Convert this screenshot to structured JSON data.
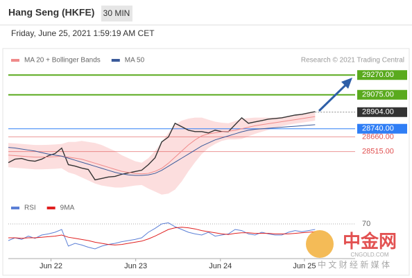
{
  "header": {
    "title": "Hang Seng (HKFE)",
    "timeframe": "30 MIN",
    "datetime": "Friday, June 25, 2021 1:59:19 AM CET"
  },
  "watermark": {
    "logo": "中金网",
    "site": "CNGOLD.COM",
    "tagline": "中 文 财 经 新 媒 体"
  },
  "chart_data": [
    {
      "type": "line",
      "credit": "Research © 2021 Trading Central",
      "x": [
        0,
        1,
        2,
        3,
        4,
        5,
        6,
        7,
        8,
        9,
        10,
        11,
        12,
        13,
        14,
        15,
        16,
        17,
        18,
        19,
        20,
        21,
        22,
        23,
        24,
        25,
        26,
        27,
        28,
        29,
        30,
        31,
        32,
        33,
        34,
        35,
        36,
        37,
        38,
        39,
        40,
        41,
        42,
        43,
        44,
        45,
        46
      ],
      "xlim": [
        0,
        52
      ],
      "xticks": [
        {
          "value": 6.4,
          "label": "Jun 22"
        },
        {
          "value": 19.1,
          "label": "Jun 23"
        },
        {
          "value": 31.8,
          "label": "Jun 24"
        },
        {
          "value": 44.4,
          "label": "Jun 25"
        }
      ],
      "ylim": [
        28150,
        29340
      ],
      "band": {
        "color": "#fbd3d3",
        "upper": [
          28600,
          28595,
          28590,
          28585,
          28580,
          28580,
          28582,
          28585,
          28590,
          28610,
          28610,
          28620,
          28610,
          28600,
          28580,
          28550,
          28520,
          28480,
          28450,
          28420,
          28405,
          28450,
          28520,
          28610,
          28700,
          28780,
          28820,
          28840,
          28850,
          28850,
          28830,
          28810,
          28800,
          28795,
          28815,
          28840,
          28845,
          28850,
          28850,
          28850,
          28850,
          28855,
          28860,
          28870,
          28880,
          28890,
          28900
        ],
        "lower": [
          28360,
          28355,
          28350,
          28345,
          28340,
          28340,
          28342,
          28345,
          28350,
          28310,
          28290,
          28260,
          28230,
          28200,
          28180,
          28170,
          28160,
          28160,
          28170,
          28180,
          28185,
          28150,
          28120,
          28090,
          28100,
          28140,
          28220,
          28320,
          28410,
          28490,
          28550,
          28590,
          28620,
          28635,
          28635,
          28640,
          28665,
          28690,
          28710,
          28730,
          28750,
          28765,
          28780,
          28790,
          28800,
          28810,
          28820
        ]
      },
      "series": [
        {
          "color": "#333333",
          "values": [
            28406,
            28440,
            28447,
            28427,
            28420,
            28440,
            28474,
            28495,
            28549,
            28386,
            28372,
            28352,
            28338,
            28236,
            28250,
            28264,
            28270,
            28291,
            28304,
            28318,
            28331,
            28386,
            28454,
            28610,
            28658,
            28794,
            28760,
            28726,
            28712,
            28712,
            28699,
            28726,
            28712,
            28712,
            28780,
            28848,
            28794,
            28808,
            28821,
            28835,
            28841,
            28848,
            28862,
            28875,
            28882,
            28896,
            28909
          ]
        },
        {
          "name": "MA 20 + Bollinger Bands",
          "color": "#f08a8a",
          "values": [
            28480,
            28475,
            28470,
            28465,
            28460,
            28460,
            28462,
            28465,
            28470,
            28460,
            28450,
            28440,
            28420,
            28400,
            28380,
            28360,
            28340,
            28320,
            28310,
            28300,
            28295,
            28300,
            28320,
            28350,
            28400,
            28460,
            28520,
            28580,
            28630,
            28670,
            28690,
            28700,
            28710,
            28715,
            28725,
            28740,
            28755,
            28770,
            28780,
            28790,
            28800,
            28810,
            28820,
            28830,
            28840,
            28850,
            28860
          ]
        },
        {
          "name": "MA 50",
          "color": "#3a5a9a",
          "values": [
            28556,
            28550,
            28540,
            28530,
            28520,
            28505,
            28490,
            28480,
            28470,
            28450,
            28430,
            28410,
            28390,
            28370,
            28350,
            28330,
            28310,
            28295,
            28285,
            28280,
            28280,
            28285,
            28300,
            28330,
            28370,
            28410,
            28450,
            28490,
            28530,
            28570,
            28600,
            28630,
            28650,
            28670,
            28690,
            28710,
            28725,
            28735,
            28740,
            28745,
            28750,
            28755,
            28760,
            28765,
            28770,
            28775,
            28780
          ]
        }
      ],
      "levels": [
        29270,
        29075,
        28904,
        28740,
        28660,
        28515
      ],
      "level_labels": [
        "29270.00",
        "29075.00",
        "28904.00",
        "28740.00",
        "28660.00",
        "28515.00"
      ],
      "level_colors": [
        "#5aaa1e",
        "#5aaa1e",
        "#333333",
        "#2f7ef5",
        "#e05050",
        "#e05050"
      ]
    },
    {
      "type": "line",
      "xlim": [
        0,
        52
      ],
      "x": [
        0,
        1,
        2,
        3,
        4,
        5,
        6,
        7,
        8,
        9,
        10,
        11,
        12,
        13,
        14,
        15,
        16,
        17,
        18,
        19,
        20,
        21,
        22,
        23,
        24,
        25,
        26,
        27,
        28,
        29,
        30,
        31,
        32,
        33,
        34,
        35,
        36,
        37,
        38,
        39,
        40,
        41,
        42,
        43,
        44,
        45,
        46
      ],
      "ylim": [
        0,
        100
      ],
      "yticks": [
        70
      ],
      "series": [
        {
          "name": "RSI",
          "color": "#5b7fd6",
          "values": [
            40,
            45,
            42,
            48,
            44,
            50,
            52,
            55,
            60,
            30,
            35,
            32,
            28,
            25,
            30,
            33,
            35,
            38,
            40,
            42,
            45,
            55,
            62,
            70,
            72,
            65,
            60,
            55,
            52,
            50,
            55,
            48,
            50,
            52,
            60,
            58,
            52,
            50,
            55,
            52,
            50,
            50,
            55,
            58,
            56,
            58,
            60
          ]
        },
        {
          "name": "9MA",
          "color": "#e02020",
          "values": [
            45,
            45,
            44,
            45,
            45,
            46,
            47,
            48,
            50,
            46,
            44,
            42,
            40,
            37,
            35,
            33,
            32,
            33,
            35,
            37,
            39,
            43,
            48,
            54,
            60,
            63,
            64,
            63,
            61,
            58,
            56,
            54,
            52,
            51,
            53,
            54,
            54,
            53,
            53,
            53,
            52,
            52,
            52,
            53,
            54,
            55,
            56
          ]
        }
      ]
    }
  ]
}
